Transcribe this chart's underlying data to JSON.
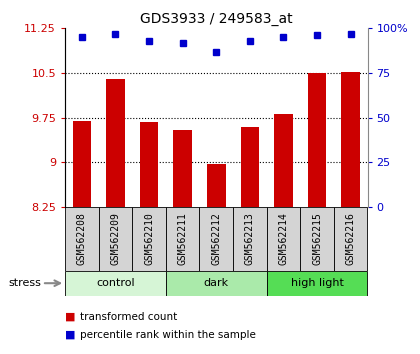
{
  "title": "GDS3933 / 249583_at",
  "samples": [
    "GSM562208",
    "GSM562209",
    "GSM562210",
    "GSM562211",
    "GSM562212",
    "GSM562213",
    "GSM562214",
    "GSM562215",
    "GSM562216"
  ],
  "red_values": [
    9.7,
    10.4,
    9.68,
    9.55,
    8.97,
    9.6,
    9.82,
    10.5,
    10.52
  ],
  "blue_values": [
    95,
    97,
    93,
    92,
    87,
    93,
    95,
    96,
    97
  ],
  "ylim_left": [
    8.25,
    11.25
  ],
  "ylim_right": [
    0,
    100
  ],
  "yticks_left": [
    8.25,
    9.0,
    9.75,
    10.5,
    11.25
  ],
  "yticks_right": [
    0,
    25,
    50,
    75,
    100
  ],
  "ytick_labels_left": [
    "8.25",
    "9",
    "9.75",
    "10.5",
    "11.25"
  ],
  "ytick_labels_right": [
    "0",
    "25",
    "50",
    "75",
    "100%"
  ],
  "group_labels": [
    "control",
    "dark",
    "high light"
  ],
  "group_colors": [
    "#d6f5d6",
    "#aaeaaa",
    "#55dd55"
  ],
  "bar_color": "#cc0000",
  "dot_color": "#0000cc",
  "stress_label": "stress",
  "legend_red": "transformed count",
  "legend_blue": "percentile rank within the sample",
  "fig_width": 4.2,
  "fig_height": 3.54,
  "dpi": 100
}
